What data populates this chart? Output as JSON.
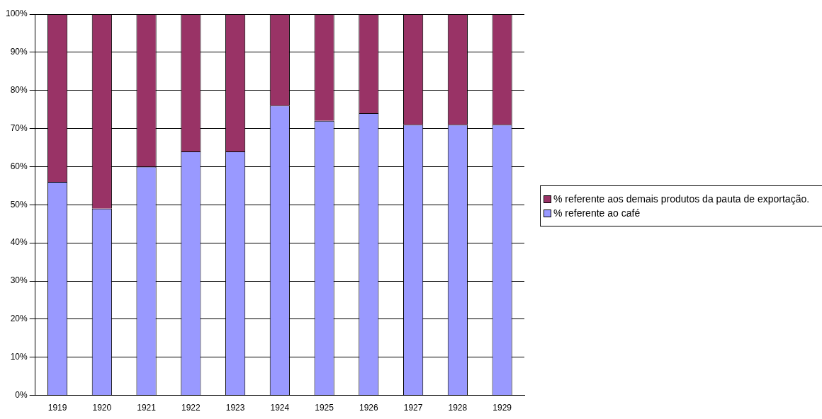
{
  "chart_data": {
    "type": "bar",
    "stacked": true,
    "categories": [
      "1919",
      "1920",
      "1921",
      "1922",
      "1923",
      "1924",
      "1925",
      "1926",
      "1927",
      "1928",
      "1929"
    ],
    "series": [
      {
        "name": "% referente ao café",
        "color": "#9999ff",
        "values": [
          56,
          49,
          60,
          64,
          64,
          76,
          72,
          74,
          71,
          71,
          71
        ]
      },
      {
        "name": "% referente aos demais produtos da pauta de exportação.",
        "color": "#993366",
        "values": [
          44,
          51,
          40,
          36,
          36,
          24,
          28,
          26,
          29,
          29,
          29
        ]
      }
    ],
    "ylim": [
      0,
      100
    ],
    "yticks": [
      {
        "value": 0,
        "label": "0%"
      },
      {
        "value": 10,
        "label": "10%"
      },
      {
        "value": 20,
        "label": "20%"
      },
      {
        "value": 30,
        "label": "30%"
      },
      {
        "value": 40,
        "label": "40%"
      },
      {
        "value": 50,
        "label": "50%"
      },
      {
        "value": 60,
        "label": "60%"
      },
      {
        "value": 70,
        "label": "70%"
      },
      {
        "value": 80,
        "label": "80%"
      },
      {
        "value": 90,
        "label": "90%"
      },
      {
        "value": 100,
        "label": "100%"
      }
    ],
    "grid": "y",
    "legend": "right"
  }
}
